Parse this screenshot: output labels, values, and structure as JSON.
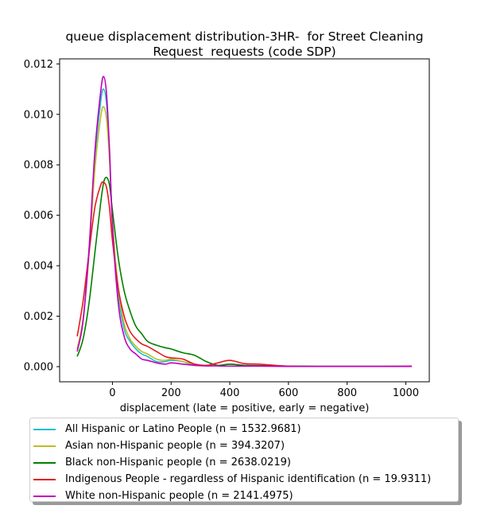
{
  "chart_data": {
    "type": "line",
    "title_lines": [
      "queue displacement distribution-3HR-  for Street Cleaning",
      "Request  requests (code SDP)"
    ],
    "xlabel": "displacement (late = positive, early = negative)",
    "ylabel": "",
    "xlim": [
      -180,
      1080
    ],
    "ylim": [
      -0.0006,
      0.0122
    ],
    "xticks": [
      0,
      200,
      400,
      600,
      800,
      1000
    ],
    "xtick_labels": [
      "0",
      "200",
      "400",
      "600",
      "800",
      "1000"
    ],
    "yticks": [
      0.0,
      0.002,
      0.004,
      0.006,
      0.008,
      0.01,
      0.012
    ],
    "ytick_labels": [
      "0.000",
      "0.002",
      "0.004",
      "0.006",
      "0.008",
      "0.010",
      "0.012"
    ],
    "grid": false,
    "legend_position": "below",
    "series": [
      {
        "name": "All Hispanic or Latino People (n = 1532.9681)",
        "color": "#17becf",
        "x": [
          -120,
          -100,
          -80,
          -60,
          -40,
          -30,
          -20,
          -10,
          0,
          20,
          40,
          60,
          80,
          100,
          120,
          150,
          180,
          200,
          240,
          280,
          320,
          360,
          400,
          450,
          500,
          600,
          700,
          800,
          900,
          1020
        ],
        "y": [
          0.0007,
          0.0019,
          0.0046,
          0.0082,
          0.0105,
          0.011,
          0.0104,
          0.0085,
          0.0058,
          0.0029,
          0.0015,
          0.001,
          0.0007,
          0.0005,
          0.0004,
          0.0002,
          0.0002,
          0.00025,
          0.0002,
          5e-05,
          5e-05,
          5e-05,
          0.0001,
          5e-05,
          3e-05,
          2e-05,
          1e-05,
          1e-05,
          1e-05,
          1e-05
        ]
      },
      {
        "name": "Asian non-Hispanic people (n = 394.3207)",
        "color": "#bcbd22",
        "x": [
          -120,
          -100,
          -80,
          -60,
          -40,
          -30,
          -20,
          -10,
          0,
          20,
          40,
          60,
          80,
          100,
          120,
          150,
          180,
          200,
          240,
          280,
          320,
          360,
          400,
          450,
          500,
          600,
          700,
          800,
          900,
          1020
        ],
        "y": [
          0.0007,
          0.0019,
          0.0044,
          0.0078,
          0.0099,
          0.0103,
          0.0098,
          0.0082,
          0.0058,
          0.0031,
          0.0017,
          0.0011,
          0.0008,
          0.0006,
          0.0005,
          0.0003,
          0.00025,
          0.0003,
          0.0002,
          0.0001,
          5e-05,
          5e-05,
          0.0001,
          5e-05,
          3e-05,
          2e-05,
          1e-05,
          1e-05,
          1e-05,
          1e-05
        ]
      },
      {
        "name": "Black non-Hispanic people (n = 2638.0219)",
        "color": "#008000",
        "x": [
          -120,
          -100,
          -80,
          -60,
          -40,
          -30,
          -20,
          -10,
          0,
          20,
          40,
          60,
          80,
          100,
          120,
          150,
          180,
          200,
          240,
          280,
          320,
          360,
          400,
          450,
          500,
          600,
          700,
          800,
          900,
          1020
        ],
        "y": [
          0.0004,
          0.0011,
          0.0025,
          0.0045,
          0.0065,
          0.0073,
          0.0075,
          0.0072,
          0.0062,
          0.0043,
          0.003,
          0.0022,
          0.0016,
          0.0013,
          0.001,
          0.00085,
          0.00075,
          0.0007,
          0.00055,
          0.00045,
          0.0002,
          5e-05,
          0.0001,
          5e-05,
          4e-05,
          2e-05,
          1e-05,
          1e-05,
          1e-05,
          1e-05
        ]
      },
      {
        "name": "Indigenous People - regardless of Hispanic identification (n = 19.9311)",
        "color": "#e41a1c",
        "x": [
          -120,
          -100,
          -80,
          -60,
          -40,
          -30,
          -20,
          -10,
          0,
          20,
          40,
          60,
          80,
          100,
          120,
          150,
          180,
          200,
          240,
          280,
          320,
          360,
          400,
          450,
          500,
          600,
          700,
          800,
          900,
          1020
        ],
        "y": [
          0.0012,
          0.0026,
          0.0045,
          0.0063,
          0.0072,
          0.0073,
          0.0071,
          0.0063,
          0.005,
          0.0031,
          0.002,
          0.0014,
          0.0011,
          0.0009,
          0.0008,
          0.0006,
          0.0004,
          0.00035,
          0.0003,
          0.0001,
          5e-05,
          0.00015,
          0.00025,
          0.00012,
          0.0001,
          2e-05,
          1e-05,
          1e-05,
          1e-05,
          2e-05
        ]
      },
      {
        "name": "White non-Hispanic people (n = 2141.4975)",
        "color": "#c000c0",
        "x": [
          -120,
          -100,
          -80,
          -60,
          -40,
          -30,
          -20,
          -10,
          0,
          20,
          40,
          60,
          80,
          100,
          120,
          150,
          180,
          200,
          240,
          280,
          320,
          360,
          400,
          450,
          500,
          600,
          700,
          800,
          900,
          1020
        ],
        "y": [
          0.0006,
          0.0018,
          0.0046,
          0.0085,
          0.0109,
          0.0115,
          0.0108,
          0.0086,
          0.0056,
          0.0025,
          0.0012,
          0.0007,
          0.0005,
          0.0003,
          0.00025,
          0.00015,
          0.0001,
          0.00015,
          0.0001,
          5e-05,
          3e-05,
          3e-05,
          2e-05,
          2e-05,
          2e-05,
          1e-05,
          1e-05,
          1e-05,
          1e-05,
          1e-05
        ]
      }
    ]
  }
}
